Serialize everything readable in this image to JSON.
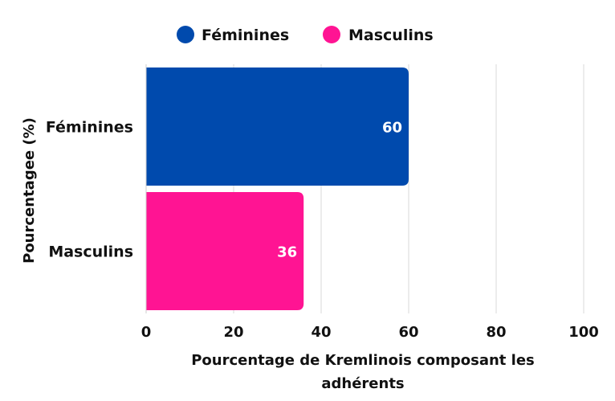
{
  "chart_data": {
    "type": "bar",
    "orientation": "horizontal",
    "categories": [
      "Féminines",
      "Masculins"
    ],
    "values": [
      60,
      36
    ],
    "colors": [
      "#004aad",
      "#ff1493"
    ],
    "data_labels": [
      "60",
      "36"
    ],
    "xlim": [
      0,
      100
    ],
    "xticks": [
      "0",
      "20",
      "40",
      "60",
      "80",
      "100"
    ],
    "xlabel_lines": [
      "Pourcentage de Kremlinois composant les",
      "adhérents"
    ],
    "ylabel": "Pourcentagee (%)",
    "grid": true,
    "legend": {
      "placement": "top",
      "items": [
        {
          "label": "Féminines",
          "color": "#004aad"
        },
        {
          "label": "Masculins",
          "color": "#ff1493"
        }
      ]
    }
  }
}
